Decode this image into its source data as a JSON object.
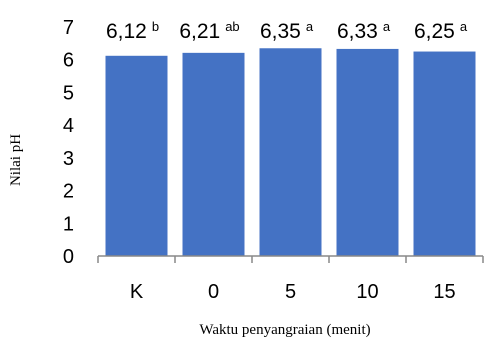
{
  "chart_data": {
    "type": "bar",
    "xlabel": "Waktu penyangraian (menit)",
    "ylabel": "Nilai pH",
    "ylim": [
      0,
      7
    ],
    "yticks": [
      "0",
      "1",
      "2",
      "3",
      "4",
      "5",
      "6",
      "7"
    ],
    "categories": [
      "K",
      "0",
      "5",
      "10",
      "15"
    ],
    "values": [
      6.12,
      6.21,
      6.35,
      6.33,
      6.25
    ],
    "value_labels": [
      "6,12",
      "6,21",
      "6,35",
      "6,33",
      "6,25"
    ],
    "significance": [
      "b",
      "ab",
      "a",
      "a",
      "a"
    ],
    "bar_color": "#4472C4",
    "grid": false,
    "legend": "none"
  }
}
